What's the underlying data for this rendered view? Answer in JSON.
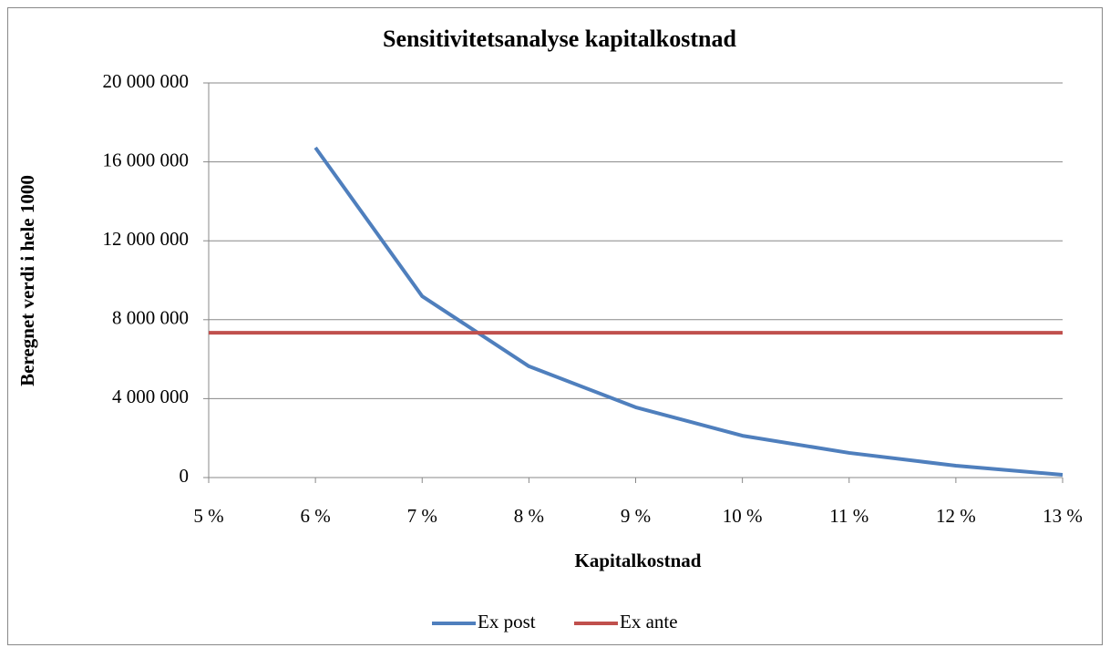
{
  "chart_data": {
    "type": "line",
    "title": "Sensitivitetsanalyse kapitalkostnad",
    "x_label": "Kapitalkostnad",
    "y_label": "Beregnet verdi i hele 1000",
    "x": [
      5,
      6,
      7,
      8,
      9,
      10,
      11,
      12,
      13
    ],
    "series": [
      {
        "name": "Ex post",
        "color": "#4f7fbd",
        "values": [
          null,
          16720000,
          9190000,
          5640000,
          3560000,
          2120000,
          1250000,
          600000,
          140000
        ]
      },
      {
        "name": "Ex ante",
        "color": "#c0504d",
        "values": [
          7340000,
          7340000,
          7340000,
          7340000,
          7340000,
          7340000,
          7340000,
          7340000,
          7340000
        ]
      }
    ],
    "xlim": [
      5,
      13
    ],
    "xticks": [
      {
        "value": 5,
        "label": "5 %"
      },
      {
        "value": 6,
        "label": "6 %"
      },
      {
        "value": 7,
        "label": "7 %"
      },
      {
        "value": 8,
        "label": "8 %"
      },
      {
        "value": 9,
        "label": "9 %"
      },
      {
        "value": 10,
        "label": "10 %"
      },
      {
        "value": 11,
        "label": "11 %"
      },
      {
        "value": 12,
        "label": "12 %"
      },
      {
        "value": 13,
        "label": "13 %"
      }
    ],
    "ylim": [
      0,
      20000000
    ],
    "yticks": [
      0,
      {
        "value": 4000000,
        "label": "4 000 000"
      },
      {
        "value": 8000000,
        "label": "8 000 000"
      },
      {
        "value": 12000000,
        "label": "12 000 000"
      },
      {
        "value": 16000000,
        "label": "16 000 000"
      },
      {
        "value": 20000000,
        "label": "20 000 000"
      }
    ],
    "grid": true,
    "legend": "bottom"
  }
}
